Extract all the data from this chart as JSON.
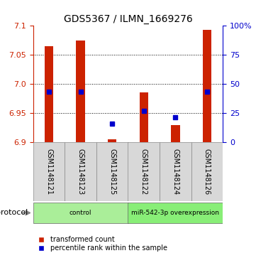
{
  "title": "GDS5367 / ILMN_1669276",
  "samples": [
    "GSM1148121",
    "GSM1148123",
    "GSM1148125",
    "GSM1148122",
    "GSM1148124",
    "GSM1148126"
  ],
  "bar_tops": [
    7.065,
    7.075,
    6.905,
    6.985,
    6.929,
    7.093
  ],
  "bar_bottom": 6.9,
  "blue_values": [
    6.987,
    6.987,
    6.932,
    6.953,
    6.943,
    6.987
  ],
  "ylim": [
    6.9,
    7.1
  ],
  "yticks_left": [
    6.9,
    6.95,
    7.0,
    7.05,
    7.1
  ],
  "yticks_right": [
    0,
    25,
    50,
    75,
    100
  ],
  "bar_color": "#cc2200",
  "blue_color": "#0000cc",
  "groups": [
    {
      "label": "control",
      "indices": [
        0,
        1,
        2
      ],
      "color": "#aaee99"
    },
    {
      "label": "miR-542-3p overexpression",
      "indices": [
        3,
        4,
        5
      ],
      "color": "#88ee77"
    }
  ],
  "protocol_label": "protocol",
  "legend_items": [
    {
      "label": "transformed count",
      "color": "#cc2200"
    },
    {
      "label": "percentile rank within the sample",
      "color": "#0000cc"
    }
  ],
  "grid_color": "#000000",
  "bg_color": "#d8d8d8",
  "bar_width": 0.28
}
